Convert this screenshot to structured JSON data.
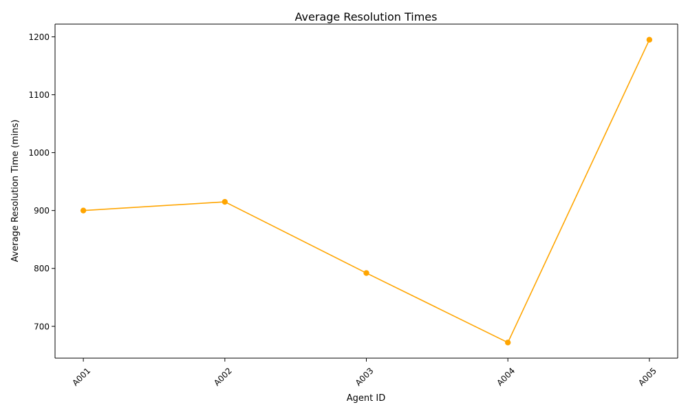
{
  "chart_data": {
    "type": "line",
    "title": "Average Resolution Times",
    "xlabel": "Agent ID",
    "ylabel": "Average Resolution Time (mins)",
    "categories": [
      "A001",
      "A002",
      "A003",
      "A004",
      "A005"
    ],
    "series": [
      {
        "values": [
          900,
          915,
          792,
          672,
          1195
        ],
        "color": "#ffa500",
        "marker": "circle"
      }
    ],
    "ylim": [
      645,
      1222
    ],
    "yticks": [
      700,
      800,
      900,
      1000,
      1100,
      1200
    ],
    "grid": false,
    "legend": "none",
    "x_tick_rotation_deg": 45
  }
}
